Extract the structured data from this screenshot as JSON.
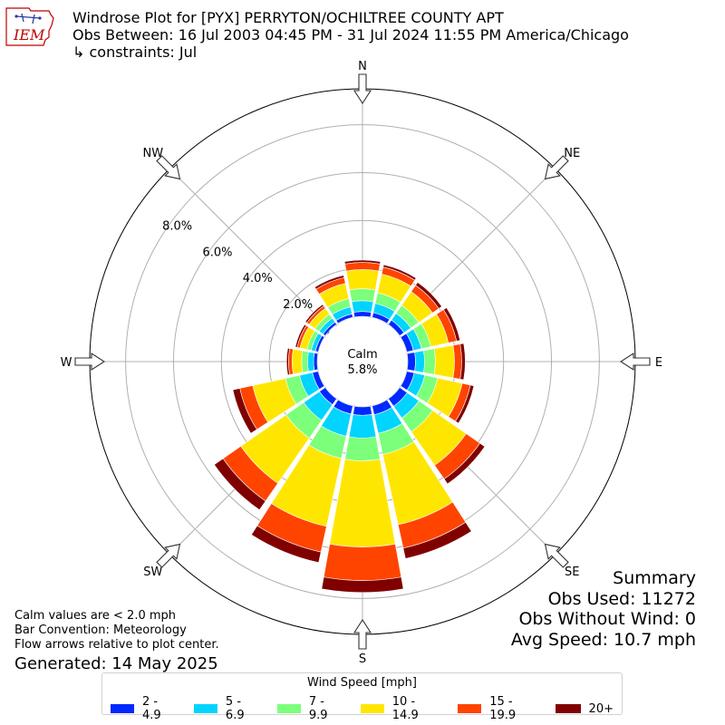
{
  "header": {
    "title": "Windrose Plot for [PYX] PERRYTON/OCHILTREE COUNTY APT",
    "period": "Obs Between: 16 Jul 2003 04:45 PM - 31 Jul 2024 11:55 PM America/Chicago",
    "constraints": "↳ constraints: Jul",
    "logo_text": "IEM"
  },
  "colors": {
    "bins": [
      "#0028ff",
      "#00d4ff",
      "#7cff7a",
      "#ffe600",
      "#ff4400",
      "#800000"
    ],
    "grid": "#b0b0b0",
    "logo": "#c00000"
  },
  "chart_data": {
    "type": "windrose",
    "directions": [
      "N",
      "NNE",
      "NE",
      "ENE",
      "E",
      "ESE",
      "SE",
      "SSE",
      "S",
      "SSW",
      "SW",
      "WSW",
      "W",
      "WNW",
      "NW",
      "NNW"
    ],
    "compass_labels": [
      "N",
      "NE",
      "E",
      "SE",
      "S",
      "SW",
      "W",
      "NW"
    ],
    "radial_tick_labels": [
      "0.0%",
      "2.0%",
      "4.0%",
      "6.0%",
      "8.0%"
    ],
    "rmax_percent": 9.5,
    "calm_label": "Calm",
    "calm_value": "5.8%",
    "legend_title": "Wind Speed [mph]",
    "speed_bins": [
      "2 - 4.9",
      "5 - 6.9",
      "7 - 9.9",
      "10 - 14.9",
      "15 - 19.9",
      "20+"
    ],
    "series": [
      {
        "name": "2 - 4.9",
        "values": [
          0.2,
          0.2,
          0.22,
          0.28,
          0.32,
          0.32,
          0.38,
          0.38,
          0.35,
          0.35,
          0.3,
          0.25,
          0.15,
          0.12,
          0.12,
          0.15
        ]
      },
      {
        "name": "5 - 6.9",
        "values": [
          0.45,
          0.4,
          0.35,
          0.35,
          0.38,
          0.45,
          0.6,
          0.8,
          0.95,
          0.95,
          0.8,
          0.55,
          0.25,
          0.18,
          0.2,
          0.3
        ]
      },
      {
        "name": "7 - 9.9",
        "values": [
          0.5,
          0.45,
          0.4,
          0.4,
          0.45,
          0.55,
          0.7,
          0.9,
          0.95,
          0.95,
          0.9,
          0.6,
          0.25,
          0.18,
          0.2,
          0.35
        ]
      },
      {
        "name": "10 - 14.9",
        "values": [
          0.8,
          0.8,
          0.7,
          0.75,
          0.8,
          1.05,
          1.7,
          3.0,
          3.6,
          2.9,
          2.3,
          1.4,
          0.4,
          0.3,
          0.3,
          0.65
        ]
      },
      {
        "name": "15 - 19.9",
        "values": [
          0.3,
          0.3,
          0.32,
          0.35,
          0.3,
          0.35,
          0.7,
          1.0,
          1.4,
          1.1,
          0.9,
          0.55,
          0.15,
          0.12,
          0.12,
          0.25
        ]
      },
      {
        "name": "20+",
        "values": [
          0.1,
          0.1,
          0.15,
          0.15,
          0.15,
          0.15,
          0.25,
          0.45,
          0.5,
          0.45,
          0.45,
          0.3,
          0.08,
          0.08,
          0.08,
          0.1
        ]
      }
    ]
  },
  "notes": {
    "calm_note": "Calm values are < 2.0 mph",
    "bar_convention": "Bar Convention: Meteorology",
    "flow_arrows": "Flow arrows relative to plot center.",
    "generated": "Generated: 14 May 2025"
  },
  "summary": {
    "title": "Summary",
    "obs_used": "Obs Used: 11272",
    "obs_without_wind": "Obs Without Wind: 0",
    "avg_speed": "Avg Speed: 10.7 mph"
  }
}
